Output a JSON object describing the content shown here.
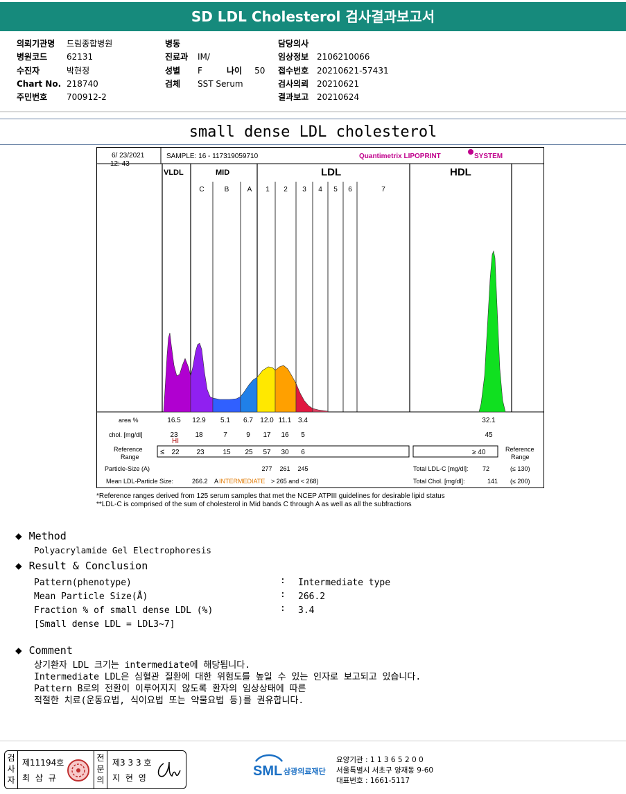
{
  "report": {
    "title": "SD LDL Cholesterol 검사결과보고서",
    "info_left": [
      {
        "label": "의뢰기관명",
        "value": "드림종합병원"
      },
      {
        "label": "병원코드",
        "value": "62131"
      },
      {
        "label": "수진자",
        "value": "박현정"
      },
      {
        "label": "Chart No.",
        "value": "218740"
      },
      {
        "label": "주민번호",
        "value": "700912-2"
      }
    ],
    "info_mid": [
      {
        "label": "병동",
        "value": ""
      },
      {
        "label": "진료과",
        "value": "IM/"
      },
      {
        "label": "성별",
        "value": "F"
      },
      {
        "label": "검체",
        "value": "SST Serum"
      }
    ],
    "age": {
      "label": "나이",
      "value": "50"
    },
    "info_right": [
      {
        "label": "담당의사",
        "value": ""
      },
      {
        "label": "임상정보",
        "value": "2106210066"
      },
      {
        "label": "접수번호",
        "value": "20210621-57431"
      },
      {
        "label": "검사의뢰",
        "value": "20210621"
      },
      {
        "label": "결과보고",
        "value": "20210624"
      }
    ]
  },
  "section_title": "small dense LDL cholesterol",
  "chart_data": {
    "type": "area",
    "date": "6/ 23/2021",
    "time": "12: 43",
    "sample": "SAMPLE:    16 - 117319059710",
    "brand": "Quantimetrix LIPOPRINT",
    "brand_suffix": "SYSTEM",
    "groups": [
      "VLDL",
      "MID",
      "LDL",
      "HDL"
    ],
    "bands": [
      "C",
      "B",
      "A",
      "1",
      "2",
      "3",
      "4",
      "5",
      "6",
      "7"
    ],
    "row_labels": {
      "area": "area %",
      "chol": "chol. [mg/dl]",
      "ref": "Reference Range",
      "ref_right": "Reference Range",
      "particle": "Particle-Size (A)",
      "mean": "Mean LDL-Particle Size:"
    },
    "fractions": [
      "VLDL",
      "C",
      "B",
      "A",
      "1",
      "2",
      "3",
      "HDL"
    ],
    "area_pct": [
      16.5,
      12.9,
      5.1,
      6.7,
      12.0,
      11.1,
      3.4,
      32.1
    ],
    "chol_mg_dl": [
      23,
      18,
      7,
      9,
      17,
      16,
      5,
      45
    ],
    "hi_flag": "HI",
    "ref_le": "≤",
    "ref_values": [
      22,
      23,
      15,
      25,
      57,
      30,
      6
    ],
    "hdl_ref": "≥  40",
    "particle_sizes": [
      277,
      261,
      245
    ],
    "mean_particle_size": "266.2",
    "mean_prefix": "A",
    "mean_category": "INTERMEDIATE",
    "mean_range": "> 265 and < 268)",
    "total_ldl_c_label": "Total LDL-C [mg/dl]:",
    "total_ldl_c": 72,
    "total_ldl_c_ref": "(≤ 130)",
    "total_chol_label": "Total Chol. [mg/dl]:",
    "total_chol": 141,
    "total_chol_ref": "(≤ 200)",
    "colors": {
      "vldl": "#b000d0",
      "c": "#9020f0",
      "b": "#3060ff",
      "a": "#2080e8",
      "ldl1": "#ffe800",
      "ldl2": "#ffa000",
      "ldl3": "#e01840",
      "hdl": "#10e020",
      "brand": "#c0008c"
    }
  },
  "footnotes": [
    "*Reference ranges derived from 125 serum samples that met the NCEP ATPIII guidelines for desirable lipid status",
    "**LDL-C is comprised of the sum of cholesterol in Mid bands C through A as well as all the subfractions"
  ],
  "method": {
    "heading": "Method",
    "text": "Polyacrylamide Gel Electrophoresis"
  },
  "result": {
    "heading": "Result & Conclusion",
    "items": [
      {
        "label": "Pattern(phenotype)",
        "value": "Intermediate type"
      },
      {
        "label": "Mean Particle Size(Å)",
        "value": "266.2"
      },
      {
        "label": "Fraction % of small dense LDL (%)",
        "value": "3.4"
      }
    ],
    "note": "[Small dense LDL = LDL3~7]",
    "colon": ":"
  },
  "comment": {
    "heading": "Comment",
    "lines": [
      "상기환자 LDL 크기는 intermediate에 해당됩니다.",
      "Intermediate LDL은 심혈관 질환에 대한 위험도를 높일 수 있는 인자로 보고되고 있습니다.",
      "Pattern B로의 전환이 이루어지지 않도록 환자의 임상상태에 따른",
      "적절한 치료(운동요법, 식이요법 또는 약물요법 등)를 권유합니다."
    ]
  },
  "signature": {
    "inspector_label": "검사자",
    "inspector_no": "제11194호",
    "inspector_name": "최 삼 규",
    "confirm_label": "전문의",
    "confirm_no": "제3 3 3 호",
    "confirm_name": "지 현 영"
  },
  "org": {
    "logo": "SML",
    "name": "삼광의료재단",
    "lines": [
      "요양기관 : 1 1 3 6 5 2 0 0",
      "서울특별시 서초구 양재동 9-60",
      "대표번호 : 1661-5117"
    ]
  }
}
